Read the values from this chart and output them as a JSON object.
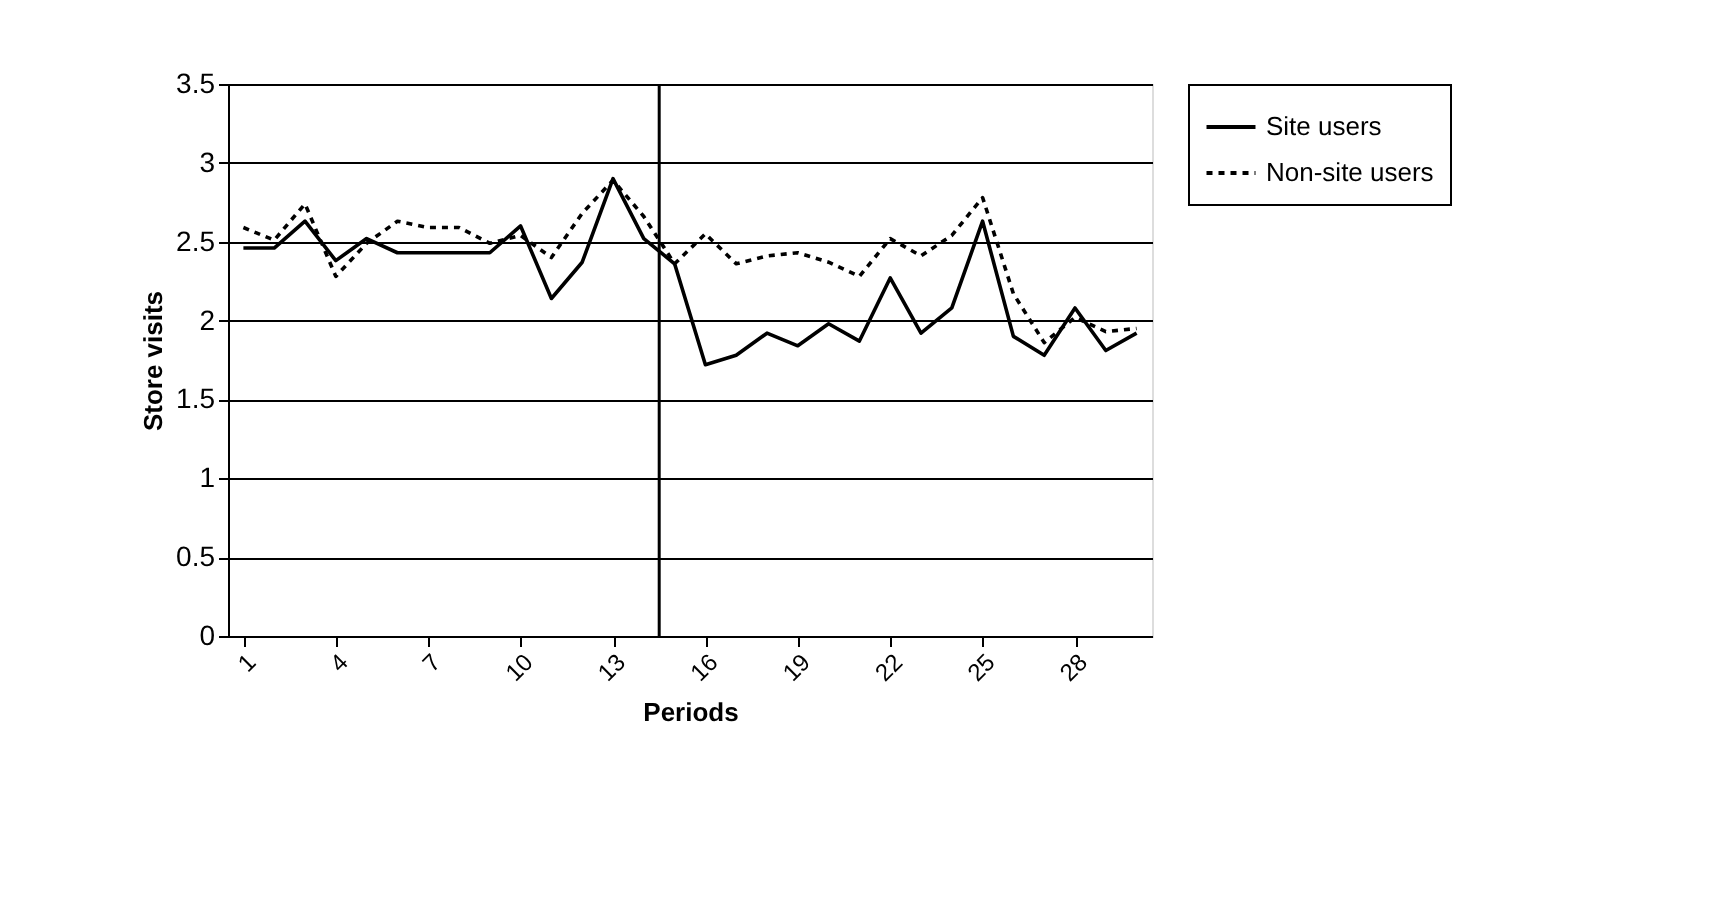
{
  "chart_data": {
    "type": "line",
    "xlabel": "Periods",
    "ylabel": "Store visits",
    "x": [
      1,
      2,
      3,
      4,
      5,
      6,
      7,
      8,
      9,
      10,
      11,
      12,
      13,
      14,
      15,
      16,
      17,
      18,
      19,
      20,
      21,
      22,
      23,
      24,
      25,
      26,
      27,
      28,
      29,
      30
    ],
    "xlim": [
      0.5,
      30.5
    ],
    "xticks": [
      1,
      4,
      7,
      10,
      13,
      16,
      19,
      22,
      25,
      28
    ],
    "ylim": [
      0,
      3.5
    ],
    "yticks": [
      0,
      0.5,
      1,
      1.5,
      2,
      2.5,
      3,
      3.5
    ],
    "grid": "y",
    "legend": "right",
    "marker": "none",
    "ref_lines": [
      {
        "axis": "x",
        "value": 14.5,
        "color": "#000000"
      }
    ],
    "series": [
      {
        "name": "Site users",
        "color": "#000000",
        "line_style": "solid",
        "values": [
          2.46,
          2.46,
          2.63,
          2.38,
          2.52,
          2.43,
          2.43,
          2.43,
          2.43,
          2.6,
          2.14,
          2.37,
          2.9,
          2.52,
          2.36,
          1.72,
          1.78,
          1.92,
          1.84,
          1.98,
          1.87,
          2.27,
          1.92,
          2.08,
          2.63,
          1.9,
          1.78,
          2.08,
          1.81,
          1.92
        ]
      },
      {
        "name": "Non-site users",
        "color": "#000000",
        "line_style": "dotted",
        "values": [
          2.59,
          2.51,
          2.74,
          2.28,
          2.49,
          2.63,
          2.59,
          2.59,
          2.49,
          2.54,
          2.4,
          2.68,
          2.89,
          2.66,
          2.36,
          2.55,
          2.36,
          2.41,
          2.43,
          2.37,
          2.28,
          2.52,
          2.41,
          2.54,
          2.78,
          2.17,
          1.86,
          2.02,
          1.93,
          1.95
        ]
      }
    ]
  }
}
